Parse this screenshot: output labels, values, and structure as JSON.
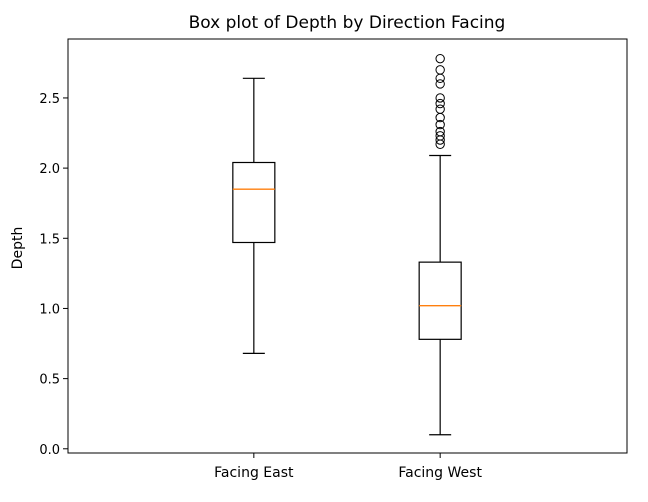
{
  "chart_data": {
    "type": "box",
    "title": "Box plot of Depth by Direction Facing",
    "xlabel": "",
    "ylabel": "Depth",
    "ylim": [
      -0.03,
      2.92
    ],
    "yticks": [
      "0.0",
      "0.5",
      "1.0",
      "1.5",
      "2.0",
      "2.5"
    ],
    "grid": false,
    "categories": [
      "Facing East",
      "Facing West"
    ],
    "boxes": [
      {
        "name": "Facing East",
        "whisker_low": 0.68,
        "q1": 1.47,
        "median": 1.85,
        "q3": 2.04,
        "whisker_high": 2.64,
        "outliers": []
      },
      {
        "name": "Facing West",
        "whisker_low": 0.1,
        "q1": 0.78,
        "median": 1.02,
        "q3": 1.33,
        "whisker_high": 2.09,
        "outliers": [
          2.17,
          2.2,
          2.23,
          2.26,
          2.31,
          2.36,
          2.42,
          2.46,
          2.5,
          2.6,
          2.64,
          2.7,
          2.78
        ]
      }
    ],
    "colors": {
      "box": "#000000",
      "median": "#ff7f0e",
      "outlier": "#000000"
    }
  }
}
